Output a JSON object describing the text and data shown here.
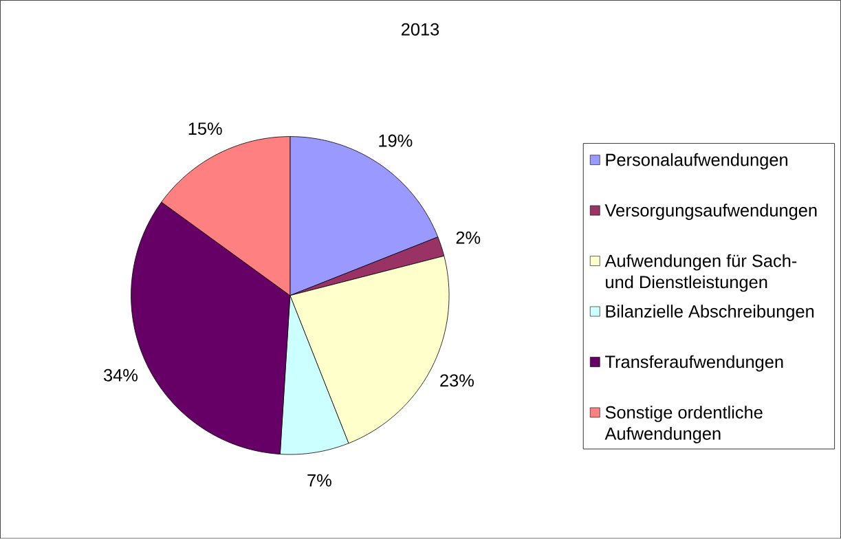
{
  "chart_data": {
    "type": "pie",
    "title": "2013",
    "categories": [
      "Personalaufwendungen",
      "Versorgungsaufwendungen",
      "Aufwendungen für Sach- und Dienstleistungen",
      "Bilanzielle Abschreibungen",
      "Transferaufwendungen",
      "Sonstige ordentliche Aufwendungen"
    ],
    "values": [
      19,
      2,
      23,
      7,
      34,
      15
    ],
    "value_labels": [
      "19%",
      "2%",
      "23%",
      "7%",
      "34%",
      "15%"
    ],
    "colors": [
      "#9999ff",
      "#993366",
      "#ffffcc",
      "#ccffff",
      "#660066",
      "#ff8080"
    ],
    "legend": "right"
  }
}
